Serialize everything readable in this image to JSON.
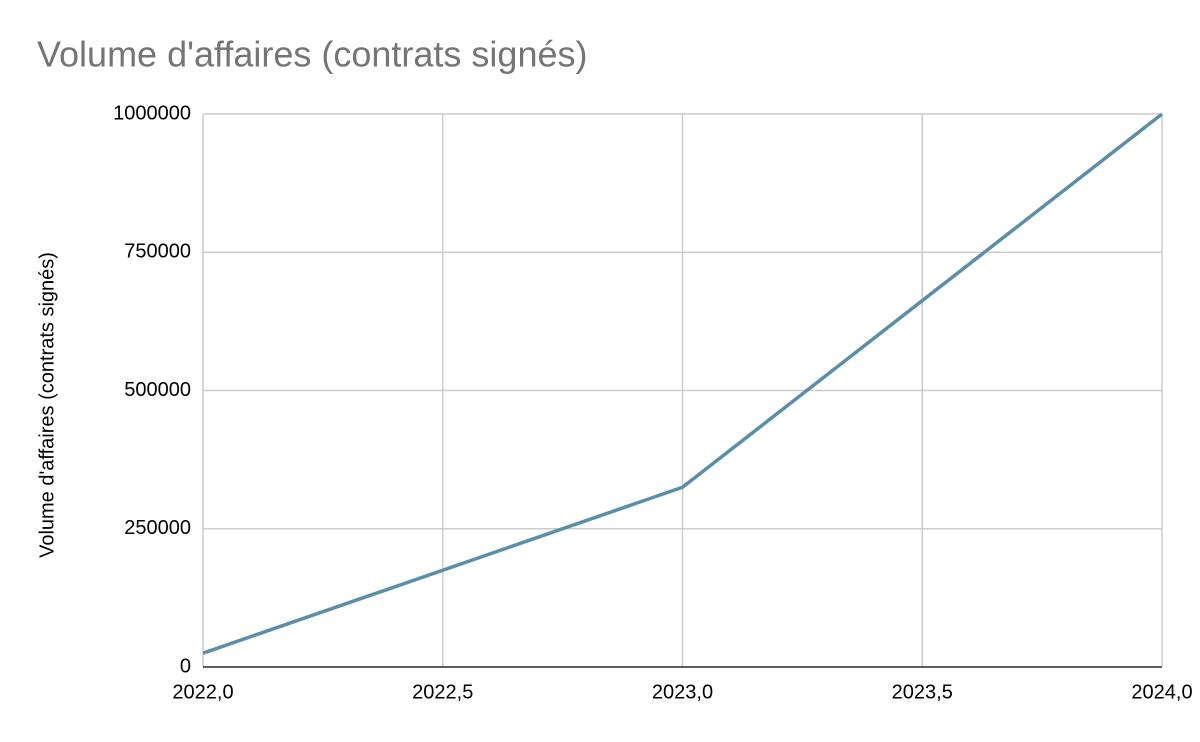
{
  "chart_data": {
    "type": "line",
    "title": "Volume d'affaires (contrats signés)",
    "y_label": "Volume d'affaires (contrats signés)",
    "x": [
      2022,
      2023,
      2024
    ],
    "values": [
      25000,
      325000,
      1000000
    ],
    "color": "#5a8fa9",
    "xlim": [
      2022,
      2024
    ],
    "xticks": [
      {
        "value": 2022,
        "label": "2022,0"
      },
      {
        "value": 2022.5,
        "label": "2022,5"
      },
      {
        "value": 2023,
        "label": "2023,0"
      },
      {
        "value": 2023.5,
        "label": "2023,5"
      },
      {
        "value": 2024,
        "label": "2024,0"
      }
    ],
    "ylim": [
      0,
      1000000
    ],
    "yticks": [
      0,
      250000,
      500000,
      750000,
      1000000
    ],
    "grid": true
  }
}
